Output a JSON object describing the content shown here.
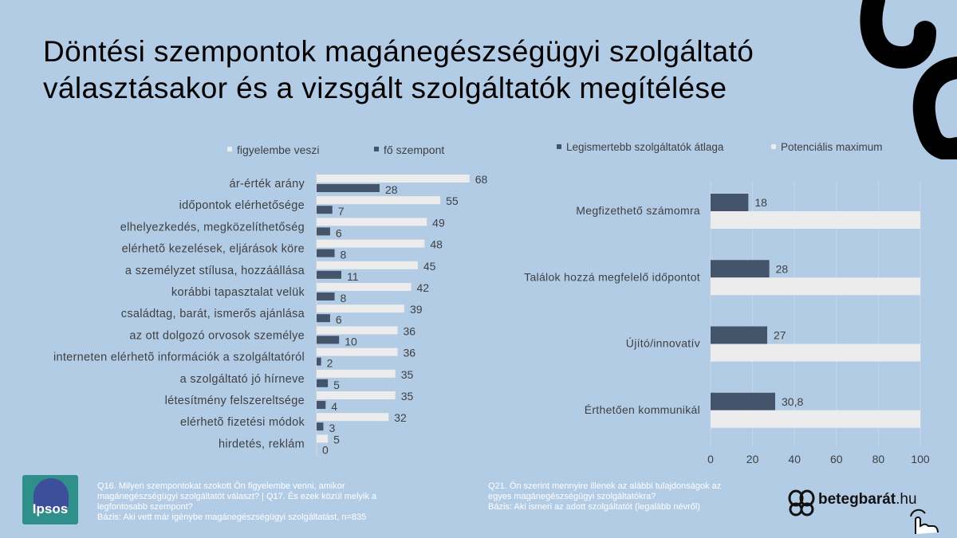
{
  "title": {
    "line1": "Döntési szempontok magánegészségügyi szolgáltató",
    "line2": "választásakor és a vizsgált szolgáltatók megítélése"
  },
  "colors": {
    "background": "#b3cce6",
    "light_bar": "#ececec",
    "dark_bar": "#44546a",
    "gridline": "#c8d6e5"
  },
  "chart_data": [
    {
      "type": "bar",
      "orientation": "horizontal",
      "categories": [
        "ár-érték arány",
        "időpontok elérhetősége",
        "elhelyezkedés, megközelíthetőség",
        "elérhetõ kezelések, eljárások köre",
        "a személyzet stílusa, hozzáállása",
        "korábbi tapasztalat velük",
        "családtag, barát, ismerős ajánlása",
        "az ott dolgozó orvosok személye",
        "interneten elérhetõ információk a szolgáltatóról",
        "a szolgáltató jó hírneve",
        "létesítmény felszereltsége",
        "elérhetõ fizetési módok",
        "hirdetés, reklám"
      ],
      "series": [
        {
          "name": "figyelembe veszi",
          "values": [
            68,
            55,
            49,
            48,
            45,
            42,
            39,
            36,
            36,
            35,
            35,
            32,
            5
          ]
        },
        {
          "name": "fő szempont",
          "values": [
            28,
            7,
            6,
            8,
            11,
            8,
            6,
            10,
            2,
            5,
            4,
            3,
            0
          ]
        }
      ],
      "legend": "top",
      "grid": false
    },
    {
      "type": "bar",
      "orientation": "horizontal",
      "categories": [
        "Megfizethető számomra",
        "Találok hozzá megfelelő időpontot",
        "Újító/innovatív",
        "Érthetően kommunikál"
      ],
      "series": [
        {
          "name": "Legismertebb szolgáltatók átlaga",
          "values": [
            18,
            28,
            27,
            30.8
          ],
          "labels": [
            "18",
            "28",
            "27",
            "30,8"
          ]
        },
        {
          "name": "Potenciális maximum",
          "values": [
            100,
            100,
            100,
            100
          ]
        }
      ],
      "xlim": [
        0,
        100
      ],
      "xticks": [
        0,
        20,
        40,
        60,
        80,
        100
      ],
      "legend": "top",
      "grid": true
    }
  ],
  "footnotes": {
    "left": [
      "Q16. Milyen szempontokat szokott Ön figyelembe venni, amikor",
      "magánegészségügyi szolgáltatót választ? | Q17. És ezek közül melyik a",
      "legfontosabb szempont?",
      "Bázis: Aki vett már igénybe magánegészségügyi szolgáltatást, n=835"
    ],
    "right": [
      "Q21. Ön szerint mennyire illenek az alábbi tulajdonságok az",
      "egyes magánegészségügyi szolgáltatókra?",
      "Bázis: Aki ismeri az adott szolgáltatót (legalább névről)"
    ]
  },
  "logos": {
    "ipsos": "Ipsos",
    "brand_bold": "betegbarát",
    "brand_suffix": ".hu"
  }
}
